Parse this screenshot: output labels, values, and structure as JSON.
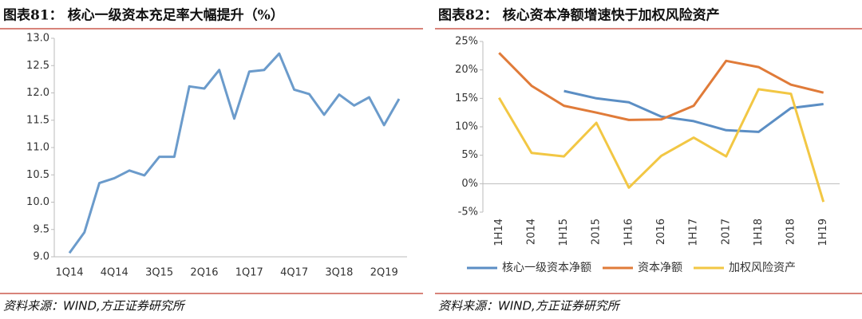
{
  "chart_data": [
    {
      "type": "line",
      "title": "图表81：  核心一级资本充足率大幅提升（%）",
      "categories": [
        "1Q14",
        null,
        null,
        "4Q14",
        null,
        null,
        "3Q15",
        null,
        null,
        "2Q16",
        null,
        null,
        "1Q17",
        null,
        null,
        "4Q17",
        null,
        null,
        "3Q18",
        null,
        null,
        "2Q19",
        null
      ],
      "series": [
        {
          "name": null,
          "color": "#6b9bcb",
          "values": [
            9.07,
            9.45,
            10.35,
            10.44,
            10.58,
            10.49,
            10.83,
            10.83,
            12.12,
            12.08,
            12.42,
            11.53,
            12.39,
            12.42,
            12.72,
            12.06,
            11.98,
            11.6,
            11.97,
            11.77,
            11.92,
            11.41,
            11.89
          ]
        }
      ],
      "ylim": [
        9.0,
        13.0
      ],
      "yticks": [
        {
          "value": 9.0,
          "label": "9.0"
        },
        {
          "value": 9.5,
          "label": "9.5"
        },
        {
          "value": 10.0,
          "label": "10.0"
        },
        {
          "value": 10.5,
          "label": "10.5"
        },
        {
          "value": 11.0,
          "label": "11.0"
        },
        {
          "value": 11.5,
          "label": "11.5"
        },
        {
          "value": 12.0,
          "label": "12.0"
        },
        {
          "value": 12.5,
          "label": "12.5"
        },
        {
          "value": 13.0,
          "label": "13.0"
        }
      ],
      "grid": false,
      "source": "资料来源：WIND,方正证券研究所"
    },
    {
      "type": "line",
      "title": "图表82：  核心资本净额增速快于加权风险资产",
      "categories": [
        "1H14",
        "2014",
        "1H15",
        "2015",
        "1H16",
        "2016",
        "1H17",
        "2017",
        "1H18",
        "2018",
        "1H19"
      ],
      "series": [
        {
          "name": "核心一级资本净额",
          "color": "#5b8ec4",
          "values": [
            null,
            null,
            16.3,
            15.0,
            14.3,
            11.8,
            11.0,
            9.4,
            9.1,
            13.3,
            14.0
          ]
        },
        {
          "name": "资本净额",
          "color": "#e07b39",
          "values": [
            23.0,
            17.2,
            13.7,
            12.5,
            11.2,
            11.3,
            13.7,
            21.6,
            20.5,
            17.4,
            16.0
          ]
        },
        {
          "name": "加权风险资产",
          "color": "#f2c744",
          "values": [
            15.1,
            5.4,
            4.8,
            10.7,
            -0.7,
            4.9,
            8.1,
            4.8,
            16.6,
            15.8,
            -3.2
          ]
        }
      ],
      "ylim": [
        -5,
        25
      ],
      "yticks": [
        {
          "value": -5,
          "label": "-5%"
        },
        {
          "value": 0,
          "label": "0%"
        },
        {
          "value": 5,
          "label": "5%"
        },
        {
          "value": 10,
          "label": "10%"
        },
        {
          "value": 15,
          "label": "15%"
        },
        {
          "value": 20,
          "label": "20%"
        },
        {
          "value": 25,
          "label": "25%"
        }
      ],
      "grid": false,
      "legend": "bottom",
      "source": "资料来源：WIND,方正证券研究所"
    }
  ]
}
